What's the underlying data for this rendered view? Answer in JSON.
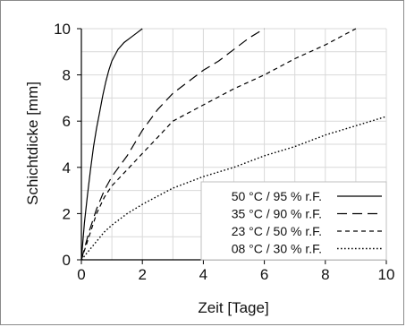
{
  "chart_data": {
    "type": "line",
    "title": "",
    "xlabel": "Zeit [Tage]",
    "ylabel": "Schichtdicke [mm]",
    "xlim": [
      0,
      10
    ],
    "ylim": [
      0,
      10
    ],
    "xticks": [
      "0",
      "2",
      "4",
      "6",
      "8",
      "10"
    ],
    "yticks": [
      "0",
      "2",
      "4",
      "6",
      "8",
      "10"
    ],
    "grid": true,
    "legend_position": "bottom-right",
    "series": [
      {
        "name": "50 °C / 95 % r.F.",
        "style": "solid",
        "color": "#000000",
        "points": [
          [
            0,
            0
          ],
          [
            0.1,
            1.6
          ],
          [
            0.2,
            2.8
          ],
          [
            0.3,
            3.9
          ],
          [
            0.4,
            4.9
          ],
          [
            0.5,
            5.7
          ],
          [
            0.6,
            6.4
          ],
          [
            0.7,
            7.1
          ],
          [
            0.8,
            7.7
          ],
          [
            0.9,
            8.2
          ],
          [
            1.0,
            8.6
          ],
          [
            1.2,
            9.1
          ],
          [
            1.4,
            9.4
          ],
          [
            1.6,
            9.6
          ],
          [
            1.8,
            9.8
          ],
          [
            2.0,
            10.0
          ]
        ]
      },
      {
        "name": "35 °C / 90 % r.F.",
        "style": "dash",
        "color": "#000000",
        "points": [
          [
            0,
            0
          ],
          [
            0.25,
            1.2
          ],
          [
            0.5,
            2.2
          ],
          [
            0.75,
            3.0
          ],
          [
            1.0,
            3.6
          ],
          [
            1.5,
            4.5
          ],
          [
            2.0,
            5.6
          ],
          [
            2.5,
            6.5
          ],
          [
            3.0,
            7.2
          ],
          [
            3.5,
            7.7
          ],
          [
            4.0,
            8.2
          ],
          [
            4.5,
            8.6
          ],
          [
            5.0,
            9.1
          ],
          [
            5.5,
            9.6
          ],
          [
            6.0,
            10.0
          ]
        ]
      },
      {
        "name": "23 °C / 50 % r.F.",
        "style": "short-dash",
        "color": "#000000",
        "points": [
          [
            0,
            0
          ],
          [
            0.25,
            1.0
          ],
          [
            0.5,
            2.0
          ],
          [
            0.75,
            2.7
          ],
          [
            1.0,
            3.2
          ],
          [
            1.5,
            3.9
          ],
          [
            2.0,
            4.6
          ],
          [
            2.5,
            5.3
          ],
          [
            3.0,
            6.0
          ],
          [
            4.0,
            6.7
          ],
          [
            5.0,
            7.4
          ],
          [
            6.0,
            8.0
          ],
          [
            7.0,
            8.7
          ],
          [
            8.0,
            9.3
          ],
          [
            9.0,
            10.0
          ]
        ]
      },
      {
        "name": "08 °C / 30 % r.F.",
        "style": "dotted",
        "color": "#000000",
        "points": [
          [
            0,
            0
          ],
          [
            0.25,
            0.4
          ],
          [
            0.5,
            0.8
          ],
          [
            0.75,
            1.2
          ],
          [
            1.0,
            1.5
          ],
          [
            1.5,
            2.0
          ],
          [
            2.0,
            2.4
          ],
          [
            3.0,
            3.1
          ],
          [
            4.0,
            3.6
          ],
          [
            5.0,
            4.0
          ],
          [
            6.0,
            4.5
          ],
          [
            7.0,
            4.9
          ],
          [
            8.0,
            5.4
          ],
          [
            9.0,
            5.8
          ],
          [
            10.0,
            6.2
          ]
        ]
      }
    ]
  }
}
